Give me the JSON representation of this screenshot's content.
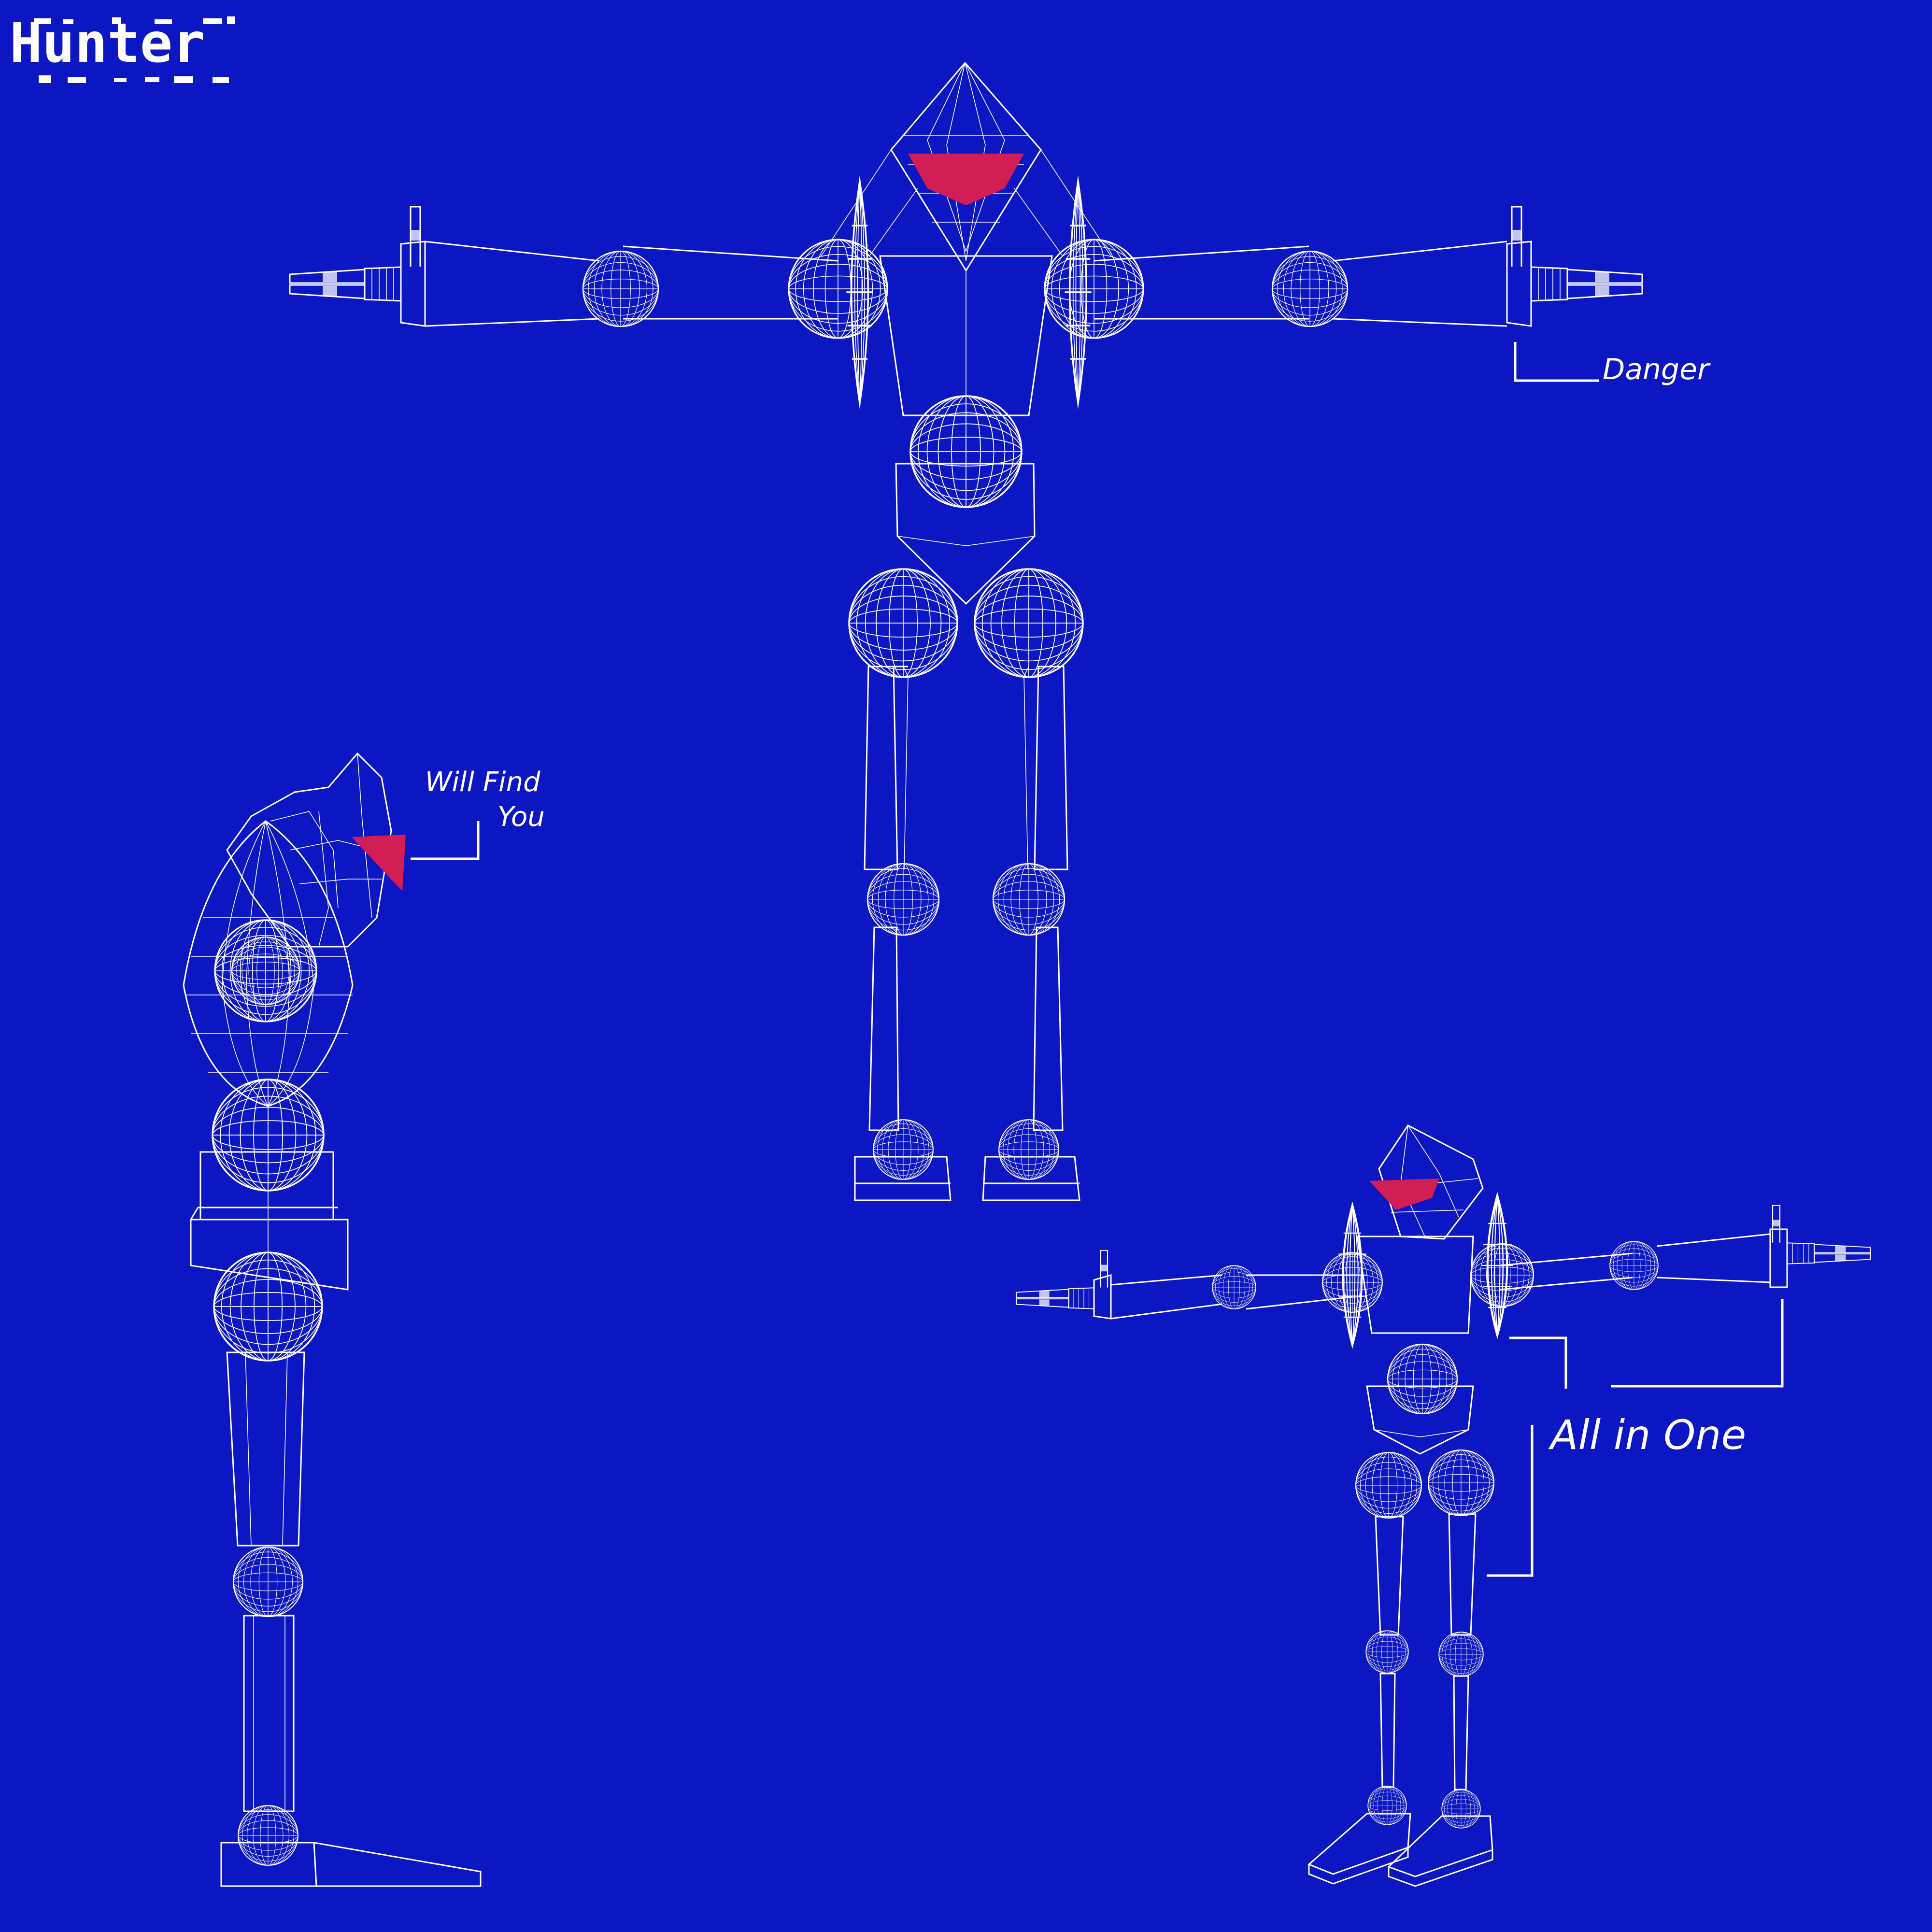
{
  "colors": {
    "background": "#0c17c3",
    "wireframe": "#ffffff",
    "accent": "#d21e55"
  },
  "logo": {
    "text": "Hunter"
  },
  "annotations": {
    "danger": "Danger",
    "will_find_line1": "Will Find",
    "will_find_line2": "You",
    "all_in_one": "All in One"
  }
}
